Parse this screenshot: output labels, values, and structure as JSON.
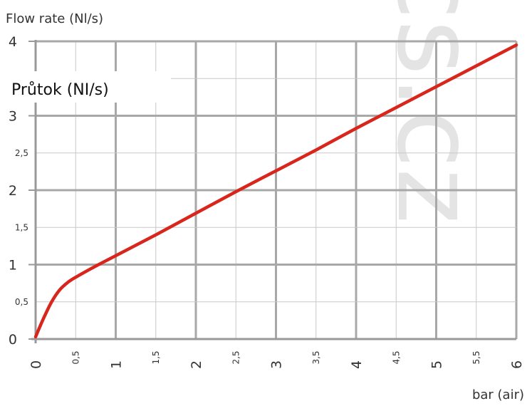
{
  "chart_data": {
    "type": "line",
    "ylabel": "Flow rate (Nl/s)",
    "xlabel": "bar (air)",
    "overlay_label": "Průtok (NI/s)",
    "watermark": "cs.cz",
    "xlim": [
      0,
      6
    ],
    "ylim": [
      0,
      4
    ],
    "grid": true,
    "x_ticks_major": [
      "0",
      "1",
      "2",
      "3",
      "4",
      "5",
      "6"
    ],
    "x_ticks_minor": [
      "0,5",
      "1,5",
      "2,5",
      "3,5",
      "4,5",
      "5,5"
    ],
    "y_ticks_major": [
      "0",
      "1",
      "2",
      "3",
      "4"
    ],
    "y_ticks_minor": [
      "0,5",
      "1,5",
      "2,5"
    ],
    "series": [
      {
        "color": "#d9261c",
        "x": [
          0,
          0.1,
          0.2,
          0.3,
          0.4,
          0.5,
          0.75,
          1,
          1.5,
          2,
          2.5,
          3,
          3.5,
          4,
          4.5,
          5,
          5.5,
          6
        ],
        "y": [
          0.03,
          0.28,
          0.5,
          0.66,
          0.76,
          0.83,
          0.98,
          1.12,
          1.4,
          1.69,
          1.98,
          2.26,
          2.54,
          2.83,
          3.11,
          3.39,
          3.67,
          3.95
        ]
      }
    ]
  }
}
